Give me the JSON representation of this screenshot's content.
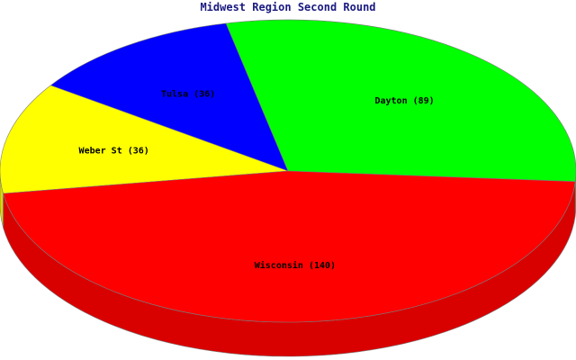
{
  "chart_data": {
    "type": "pie",
    "title": "Midwest Region Second Round",
    "slices": [
      {
        "label": "Dayton",
        "value": 89,
        "color": "#00ff00",
        "display": "Dayton (89)"
      },
      {
        "label": "Tulsa",
        "value": 36,
        "color": "#0000ff",
        "display": "Tulsa (36)"
      },
      {
        "label": "Weber St",
        "value": 36,
        "color": "#ffff00",
        "display": "Weber St (36)"
      },
      {
        "label": "Wisconsin",
        "value": 140,
        "color": "#ff0000",
        "display": "Wisconsin (140)"
      }
    ]
  }
}
